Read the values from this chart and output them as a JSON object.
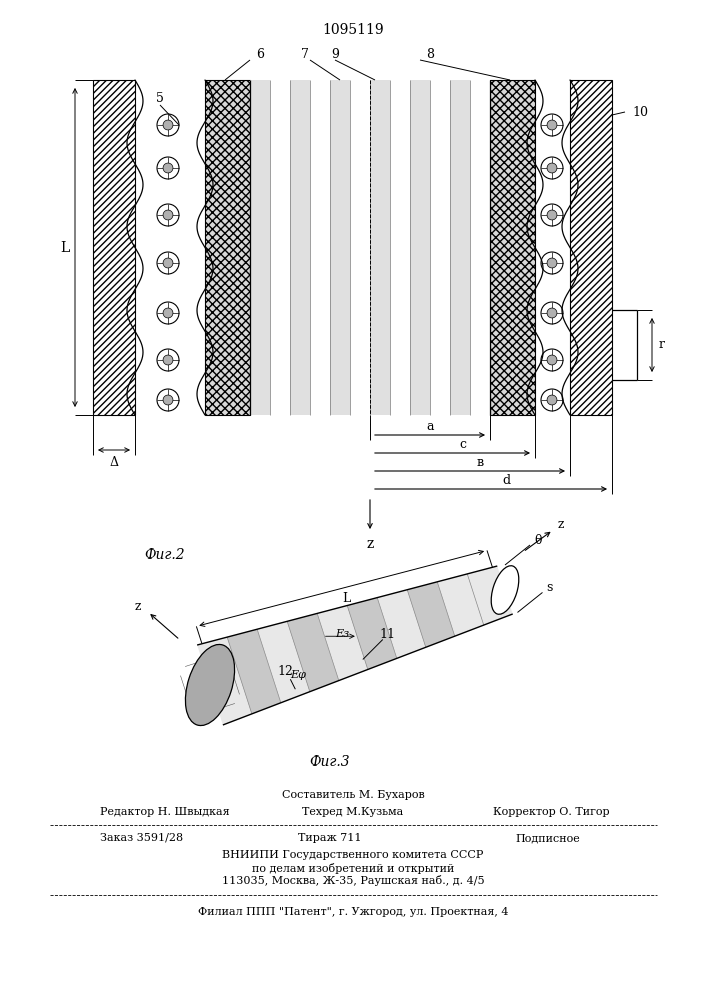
{
  "patent_number": "1095119",
  "fig2_label": "Фиг.2",
  "fig3_label": "Фиг.3",
  "bg_color": "#ffffff",
  "line_color": "#000000",
  "bottom_text": [
    [
      "Составитель М. Бухаров",
      353,
      795,
      8,
      "center"
    ],
    [
      "Редактор Н. Швыдкая",
      100,
      812,
      8,
      "left"
    ],
    [
      "Техред М.Кузьма",
      353,
      812,
      8,
      "center"
    ],
    [
      "Корректор О. Тигор",
      610,
      812,
      8,
      "right"
    ],
    [
      "Заказ 3591/28",
      100,
      838,
      8,
      "left"
    ],
    [
      "Тираж 711",
      330,
      838,
      8,
      "center"
    ],
    [
      "Подписное",
      580,
      838,
      8,
      "right"
    ],
    [
      "ВНИИПИ Государственного комитета СССР",
      353,
      855,
      8,
      "center"
    ],
    [
      "по делам изобретений и открытий",
      353,
      868,
      8,
      "center"
    ],
    [
      "113035, Москва, Ж-35, Раушская наб., д. 4/5",
      353,
      881,
      8,
      "center"
    ],
    [
      "Филиал ППП \"Патент\", г. Ужгород, ул. Проектная, 4",
      353,
      912,
      8,
      "center"
    ]
  ]
}
